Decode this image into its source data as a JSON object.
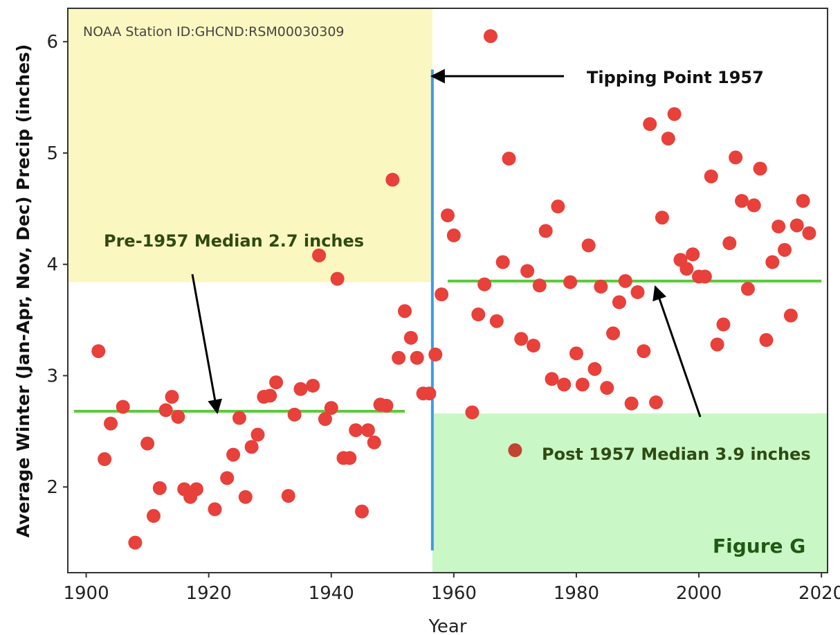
{
  "chart_data": {
    "type": "scatter",
    "title": "",
    "xlabel": "Year",
    "ylabel": "Average Winter (Jan-Apr, Nov, Dec) Precip (inches)",
    "xlim": [
      1897,
      2021
    ],
    "ylim": [
      1.23,
      6.3
    ],
    "xticks": [
      1900,
      1920,
      1940,
      1960,
      1980,
      2000,
      2020
    ],
    "yticks": [
      2,
      3,
      4,
      5,
      6
    ],
    "grid": false,
    "point_color": "#e8403a",
    "series": [
      {
        "points": [
          [
            1902,
            3.22
          ],
          [
            1903,
            2.25
          ],
          [
            1904,
            2.57
          ],
          [
            1906,
            2.72
          ],
          [
            1908,
            1.5
          ],
          [
            1910,
            2.39
          ],
          [
            1911,
            1.74
          ],
          [
            1912,
            1.99
          ],
          [
            1913,
            2.69
          ],
          [
            1914,
            2.81
          ],
          [
            1915,
            2.63
          ],
          [
            1916,
            1.98
          ],
          [
            1917,
            1.91
          ],
          [
            1918,
            1.98
          ],
          [
            1921,
            1.8
          ],
          [
            1923,
            2.08
          ],
          [
            1924,
            2.29
          ],
          [
            1925,
            2.62
          ],
          [
            1926,
            1.91
          ],
          [
            1927,
            2.36
          ],
          [
            1928,
            2.47
          ],
          [
            1929,
            2.81
          ],
          [
            1930,
            2.82
          ],
          [
            1931,
            2.94
          ],
          [
            1933,
            1.92
          ],
          [
            1934,
            2.65
          ],
          [
            1935,
            2.88
          ],
          [
            1937,
            2.91
          ],
          [
            1938,
            4.08
          ],
          [
            1939,
            2.61
          ],
          [
            1940,
            2.71
          ],
          [
            1941,
            3.87
          ],
          [
            1942,
            2.26
          ],
          [
            1943,
            2.26
          ],
          [
            1944,
            2.51
          ],
          [
            1945,
            1.78
          ],
          [
            1946,
            2.51
          ],
          [
            1947,
            2.4
          ],
          [
            1948,
            2.74
          ],
          [
            1949,
            2.73
          ],
          [
            1950,
            4.76
          ],
          [
            1951,
            3.16
          ],
          [
            1952,
            3.58
          ],
          [
            1953,
            3.34
          ],
          [
            1954,
            3.16
          ],
          [
            1955,
            2.84
          ],
          [
            1956,
            2.84
          ],
          [
            1957,
            3.19
          ],
          [
            1958,
            3.73
          ],
          [
            1959,
            4.44
          ],
          [
            1960,
            4.26
          ],
          [
            1963,
            2.67
          ],
          [
            1964,
            3.55
          ],
          [
            1965,
            3.82
          ],
          [
            1966,
            6.05
          ],
          [
            1967,
            3.49
          ],
          [
            1968,
            4.02
          ],
          [
            1969,
            4.95
          ],
          [
            1971,
            3.33
          ],
          [
            1972,
            3.94
          ],
          [
            1973,
            3.27
          ],
          [
            1974,
            3.81
          ],
          [
            1975,
            4.3
          ],
          [
            1976,
            2.97
          ],
          [
            1977,
            4.52
          ],
          [
            1978,
            2.92
          ],
          [
            1979,
            3.84
          ],
          [
            1980,
            3.2
          ],
          [
            1981,
            2.92
          ],
          [
            1982,
            4.17
          ],
          [
            1983,
            3.06
          ],
          [
            1984,
            3.8
          ],
          [
            1985,
            2.89
          ],
          [
            1986,
            3.38
          ],
          [
            1987,
            3.66
          ],
          [
            1988,
            3.85
          ],
          [
            1989,
            2.75
          ],
          [
            1990,
            3.75
          ],
          [
            1991,
            3.22
          ],
          [
            1992,
            5.26
          ],
          [
            1993,
            2.76
          ],
          [
            1994,
            4.42
          ],
          [
            1995,
            5.13
          ],
          [
            1996,
            5.35
          ],
          [
            1997,
            4.04
          ],
          [
            1998,
            3.96
          ],
          [
            1999,
            4.09
          ],
          [
            2000,
            3.89
          ],
          [
            2001,
            3.89
          ],
          [
            2002,
            4.79
          ],
          [
            2003,
            3.28
          ],
          [
            2004,
            3.46
          ],
          [
            2005,
            4.19
          ],
          [
            2006,
            4.96
          ],
          [
            2007,
            4.57
          ],
          [
            2008,
            3.78
          ],
          [
            2009,
            4.53
          ],
          [
            2010,
            4.86
          ],
          [
            2011,
            3.32
          ],
          [
            2012,
            4.02
          ],
          [
            2013,
            4.34
          ],
          [
            2014,
            4.13
          ],
          [
            2015,
            3.54
          ],
          [
            2016,
            4.35
          ],
          [
            2017,
            4.57
          ],
          [
            2018,
            4.28
          ]
        ]
      }
    ],
    "legend_marker": {
      "x": 1970,
      "y": 2.33,
      "color": "#c0442f"
    },
    "regions": [
      {
        "x0": 1897,
        "x1": 1956.5,
        "y0": 3.84,
        "y1": 6.3,
        "color": "#fbf7c0"
      },
      {
        "x0": 1956.5,
        "x1": 2021,
        "y0": 1.23,
        "y1": 2.66,
        "color": "#c9f7c6"
      }
    ],
    "median_lines": [
      {
        "x0": 1898,
        "x1": 1952,
        "y": 2.68,
        "color": "#5ac93a"
      },
      {
        "x0": 1959,
        "x1": 2020,
        "y": 3.85,
        "color": "#5ac93a"
      }
    ],
    "tipping_line": {
      "x": 1956.5,
      "y0": 1.43,
      "y1": 5.75,
      "color": "#3d9ae8"
    },
    "annotations": {
      "station": "NOAA Station ID:GHCND:RSM00030309",
      "tipping_point": "Tipping Point 1957",
      "pre_median": "Pre-1957 Median 2.7 inches",
      "post_median": "Post 1957 Median 3.9 inches",
      "figure": "Figure G"
    }
  }
}
